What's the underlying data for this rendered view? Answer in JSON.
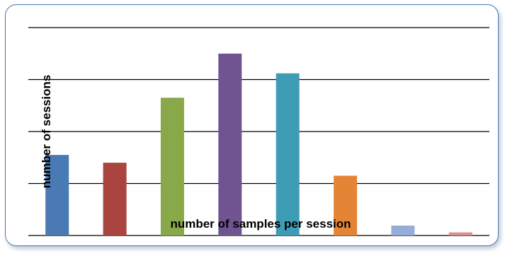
{
  "chart_data": {
    "type": "bar",
    "title": "",
    "xlabel": "number of samples per session",
    "ylabel": "number of sessions",
    "categories": [
      "",
      "",
      "",
      "",
      "",
      "",
      "",
      ""
    ],
    "values": [
      1.55,
      1.4,
      2.65,
      3.5,
      3.12,
      1.15,
      0.19,
      0.06
    ],
    "ylim": [
      0,
      4
    ],
    "gridlines": true,
    "legend": "none",
    "colors": [
      "#4a7ab4",
      "#a9443f",
      "#88a84a",
      "#6f5491",
      "#3e9db5",
      "#e48535",
      "#95aed8",
      "#d9908e"
    ]
  }
}
